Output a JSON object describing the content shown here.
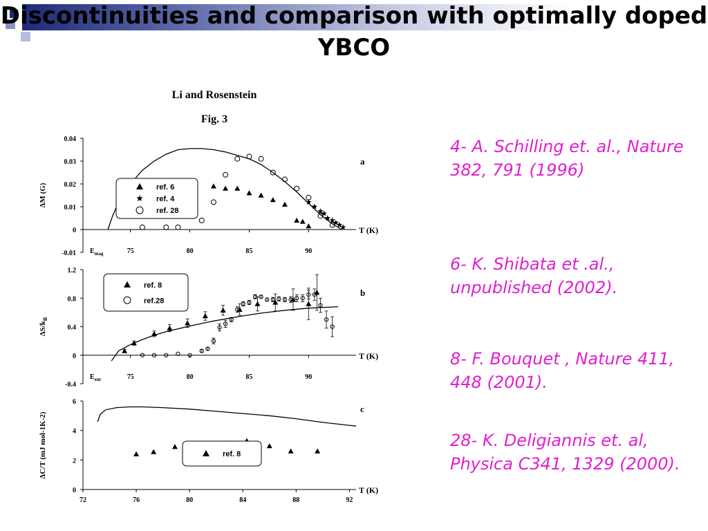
{
  "slide": {
    "title": "Discontinuities and comparison with optimally doped YBCO"
  },
  "figure": {
    "header": "Li and Rosenstein",
    "subheader": "Fig. 3",
    "x_axis_label": "T (K)",
    "panel_a": {
      "tag": "a",
      "ylabel": "ΔM (G)",
      "yticks": [
        "0.04",
        "0.03",
        "0.02",
        "0.01",
        "0",
        "-0.01"
      ],
      "xticks": [
        "75",
        "80",
        "85",
        "90"
      ],
      "marker_label": "E",
      "marker_sub": "mag",
      "legend": [
        "ref. 6",
        "ref. 4",
        "ref. 28"
      ]
    },
    "panel_b": {
      "tag": "b",
      "ylabel": "ΔS/k",
      "ylabel_sub": "B",
      "yticks": [
        "1.2",
        "0.8",
        "0.4",
        "0",
        "-0.4"
      ],
      "xticks": [
        "75",
        "80",
        "85",
        "90"
      ],
      "marker_label": "E",
      "marker_sub": "ent",
      "legend": [
        "ref. 8",
        "ref.28"
      ]
    },
    "panel_c": {
      "tag": "c",
      "ylabel": "ΔC/T (mJ mol-1K-2)",
      "yticks": [
        "6",
        "4",
        "2",
        "0"
      ],
      "xticks": [
        "72",
        "76",
        "80",
        "84",
        "88",
        "92"
      ],
      "legend": [
        "ref. 8"
      ]
    }
  },
  "chart_data": [
    {
      "type": "scatter",
      "panel": "a",
      "ylabel": "ΔM (G)",
      "xlabel": "T (K)",
      "xlim": [
        71,
        94
      ],
      "ylim": [
        -0.01,
        0.04
      ],
      "series": [
        {
          "name": "ref. 6",
          "marker": "triangle",
          "x": [
            82,
            83,
            84,
            85,
            86,
            87,
            88,
            89,
            89.5,
            90
          ],
          "y": [
            0.019,
            0.018,
            0.018,
            0.016,
            0.015,
            0.013,
            0.011,
            0.004,
            0.0035,
            0.0015
          ]
        },
        {
          "name": "ref. 4",
          "marker": "star",
          "x": [
            90,
            90.5,
            91,
            91.3,
            91.6,
            92,
            92.3,
            92.6,
            92.9
          ],
          "y": [
            0.012,
            0.01,
            0.008,
            0.007,
            0.005,
            0.004,
            0.003,
            0.002,
            0.001
          ]
        },
        {
          "name": "ref. 28",
          "marker": "circle",
          "x": [
            76,
            78,
            79,
            81,
            82,
            83,
            84,
            85,
            86,
            87,
            88,
            89,
            90,
            91,
            92
          ],
          "y": [
            0.001,
            0.001,
            0.001,
            0.004,
            0.012,
            0.024,
            0.031,
            0.032,
            0.031,
            0.025,
            0.022,
            0.018,
            0.014,
            0.006,
            0.002
          ]
        }
      ],
      "curve": {
        "x": [
          73.1,
          73.5,
          74,
          75,
          76,
          77,
          78,
          79,
          80,
          81,
          82,
          83,
          84,
          85,
          86,
          87,
          88,
          89,
          90,
          91,
          92,
          92.8
        ],
        "y": [
          0.0,
          0.006,
          0.012,
          0.02,
          0.026,
          0.03,
          0.033,
          0.035,
          0.0355,
          0.0355,
          0.035,
          0.034,
          0.0325,
          0.031,
          0.0285,
          0.025,
          0.021,
          0.0165,
          0.0115,
          0.0065,
          0.0025,
          0.0
        ]
      }
    },
    {
      "type": "scatter",
      "panel": "b",
      "ylabel": "ΔS/kB",
      "xlabel": "T (K)",
      "xlim": [
        71,
        94
      ],
      "ylim": [
        -0.4,
        1.2
      ],
      "series": [
        {
          "name": "ref. 8",
          "marker": "triangle",
          "x": [
            74.5,
            75.3,
            77,
            78.3,
            79.8,
            81.3,
            82.8,
            84.2,
            85.7,
            87.2,
            88.7,
            90,
            90.7
          ],
          "y": [
            0.06,
            0.17,
            0.3,
            0.38,
            0.45,
            0.55,
            0.63,
            0.64,
            0.72,
            0.74,
            0.78,
            0.72,
            0.88
          ],
          "err": [
            0.02,
            0.03,
            0.04,
            0.05,
            0.06,
            0.06,
            0.07,
            0.08,
            0.1,
            0.12,
            0.15,
            0.22,
            0.25
          ]
        },
        {
          "name": "ref.28",
          "marker": "circle",
          "x": [
            76,
            77,
            78,
            79,
            80,
            81,
            81.5,
            82,
            82.5,
            83,
            83.5,
            84,
            84.5,
            85,
            85.5,
            86,
            86.5,
            87,
            87.5,
            88,
            88.5,
            89,
            89.5,
            90,
            90.5,
            91,
            91.5,
            92
          ],
          "y": [
            0,
            0,
            0,
            0.02,
            0,
            0.06,
            0.09,
            0.2,
            0.39,
            0.44,
            0.5,
            0.64,
            0.72,
            0.74,
            0.82,
            0.82,
            0.78,
            0.78,
            0.79,
            0.78,
            0.78,
            0.8,
            0.8,
            0.85,
            0.85,
            0.7,
            0.5,
            0.4
          ],
          "err": [
            0,
            0,
            0,
            0,
            0,
            0.02,
            0.02,
            0.04,
            0.05,
            0.05,
            0.03,
            0.04,
            0.03,
            0.03,
            0.03,
            0.02,
            0.02,
            0.03,
            0.03,
            0.03,
            0.04,
            0.05,
            0.05,
            0.06,
            0.08,
            0.1,
            0.12,
            0.14
          ]
        }
      ],
      "curve": {
        "x": [
          73.4,
          74,
          75,
          76,
          77,
          78,
          80,
          82,
          84,
          86,
          88,
          90,
          92.5
        ],
        "y": [
          -0.08,
          0.06,
          0.15,
          0.22,
          0.28,
          0.33,
          0.41,
          0.48,
          0.54,
          0.59,
          0.63,
          0.66,
          0.68
        ]
      }
    },
    {
      "type": "scatter",
      "panel": "c",
      "ylabel": "ΔC/T (mJ mol-1K-2)",
      "xlabel": "T (K)",
      "xlim": [
        72,
        92.5
      ],
      "ylim": [
        0,
        6
      ],
      "series": [
        {
          "name": "ref. 8",
          "marker": "triangle",
          "x": [
            76,
            77.3,
            78.9,
            80,
            81.5,
            83,
            84.3,
            86,
            87.6,
            89.6
          ],
          "y": [
            2.4,
            2.55,
            2.9,
            2.9,
            3.05,
            3.15,
            3.3,
            2.95,
            2.6,
            2.6
          ]
        }
      ],
      "curve": {
        "x": [
          73.1,
          73.3,
          73.7,
          74.5,
          75.5,
          76.5,
          78,
          80,
          82,
          84,
          86,
          88,
          90,
          92.5
        ],
        "y": [
          4.6,
          5.1,
          5.4,
          5.55,
          5.6,
          5.6,
          5.55,
          5.45,
          5.3,
          5.15,
          5.0,
          4.8,
          4.55,
          4.3
        ]
      }
    }
  ],
  "references": [
    "4- A. Schilling et. al., Nature 382, 791 (1996)",
    "6- K. Shibata et .al., unpublished (2002).",
    "8- F. Bouquet , Nature 411, 448 (2001).",
    "28- K. Deligiannis et. al, Physica C341, 1329 (2000)."
  ],
  "colors": {
    "accent": "#1e2a78",
    "reference_text": "#e020d0"
  }
}
